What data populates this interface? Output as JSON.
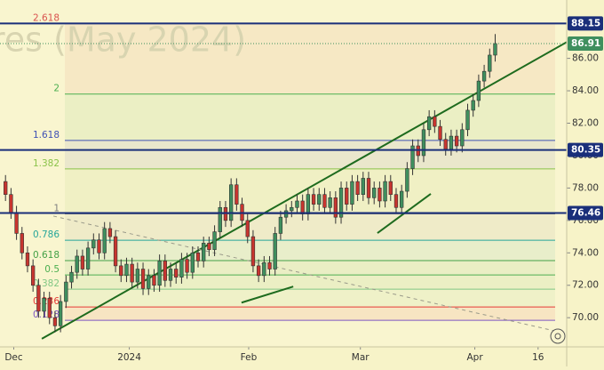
{
  "chart_data": {
    "type": "candlestick",
    "watermark": "res (May 2024)",
    "x": [
      0,
      1,
      2,
      3,
      4,
      5,
      6,
      7,
      8,
      9,
      10,
      11,
      12,
      13,
      14,
      15,
      16,
      17,
      18,
      19,
      20,
      21,
      22,
      23,
      24,
      25,
      26,
      27,
      28,
      29,
      30,
      31,
      32,
      33,
      34,
      35,
      36,
      37,
      38,
      39,
      40,
      41,
      42,
      43,
      44,
      45,
      46,
      47,
      48,
      49,
      50,
      51,
      52,
      53,
      54,
      55,
      56,
      57,
      58,
      59,
      60,
      61,
      62,
      63,
      64,
      65,
      66,
      67,
      68,
      69,
      70,
      71,
      72,
      73,
      74,
      75,
      76,
      77,
      78,
      79,
      80,
      81,
      82,
      83,
      84,
      85,
      86,
      87,
      88,
      89
    ],
    "open": [
      78.4,
      77.6,
      76.5,
      75.2,
      74.0,
      73.2,
      72.0,
      70.4,
      71.2,
      70.0,
      69.5,
      71.0,
      72.2,
      72.8,
      73.8,
      73.0,
      74.3,
      74.8,
      74.0,
      75.5,
      75.0,
      73.2,
      72.6,
      73.3,
      72.2,
      73.0,
      71.8,
      72.6,
      72.0,
      73.5,
      72.3,
      73.0,
      72.5,
      73.6,
      72.8,
      74.0,
      73.5,
      74.6,
      74.2,
      75.3,
      76.8,
      76.0,
      78.2,
      77.0,
      76.0,
      75.0,
      73.2,
      72.6,
      73.4,
      73.0,
      75.2,
      76.2,
      76.6,
      76.8,
      77.2,
      76.4,
      77.6,
      77.0,
      77.6,
      76.8,
      77.4,
      76.2,
      78.0,
      77.0,
      78.4,
      77.6,
      78.6,
      77.4,
      78.0,
      77.2,
      78.4,
      77.6,
      76.8,
      77.8,
      79.2,
      80.6,
      80.0,
      81.6,
      82.4,
      81.8,
      81.0,
      80.4,
      81.2,
      80.6,
      81.6,
      82.8,
      83.4,
      84.6,
      85.2,
      86.2
    ],
    "high": [
      78.8,
      78.0,
      76.9,
      75.6,
      74.4,
      73.6,
      72.4,
      71.6,
      71.6,
      70.4,
      71.4,
      72.6,
      73.2,
      74.2,
      74.2,
      74.7,
      75.2,
      75.2,
      75.9,
      75.9,
      75.4,
      73.6,
      73.7,
      73.7,
      73.4,
      73.4,
      73.0,
      73.0,
      73.9,
      73.9,
      73.4,
      73.4,
      74.0,
      74.0,
      74.4,
      74.4,
      75.0,
      75.0,
      75.7,
      77.2,
      77.2,
      78.6,
      78.6,
      77.4,
      76.4,
      75.4,
      73.6,
      73.8,
      73.8,
      75.6,
      76.6,
      77.0,
      77.2,
      77.6,
      77.6,
      78.0,
      78.0,
      78.0,
      78.0,
      77.8,
      77.8,
      78.4,
      78.4,
      78.8,
      78.8,
      79.0,
      79.0,
      78.4,
      78.4,
      78.8,
      78.8,
      78.0,
      78.2,
      79.6,
      81.0,
      81.0,
      82.0,
      82.8,
      82.8,
      82.2,
      81.4,
      81.6,
      81.6,
      82.0,
      83.2,
      83.8,
      85.0,
      85.6,
      86.6,
      87.5
    ],
    "low": [
      77.2,
      76.1,
      74.8,
      73.6,
      72.8,
      71.6,
      70.0,
      70.0,
      69.6,
      69.1,
      69.1,
      70.6,
      71.8,
      72.4,
      72.6,
      72.6,
      73.9,
      73.6,
      73.6,
      74.6,
      72.8,
      72.2,
      72.2,
      71.8,
      71.8,
      71.4,
      71.4,
      71.6,
      71.6,
      71.9,
      71.9,
      72.1,
      72.1,
      72.4,
      72.4,
      73.1,
      73.1,
      73.8,
      73.8,
      74.9,
      75.6,
      75.6,
      76.6,
      75.6,
      74.6,
      72.8,
      72.2,
      72.2,
      72.6,
      72.6,
      74.8,
      75.8,
      76.2,
      76.4,
      76.0,
      76.0,
      76.6,
      76.6,
      76.4,
      76.4,
      75.8,
      75.8,
      76.6,
      76.6,
      77.2,
      77.2,
      77.0,
      77.0,
      76.8,
      76.8,
      77.2,
      76.4,
      76.4,
      77.4,
      78.8,
      79.6,
      79.6,
      81.2,
      81.4,
      80.6,
      80.0,
      80.0,
      80.2,
      80.2,
      81.2,
      82.4,
      83.0,
      84.2,
      84.8,
      85.8
    ],
    "close": [
      77.6,
      76.5,
      75.2,
      74.0,
      73.2,
      72.0,
      70.4,
      71.2,
      70.0,
      69.5,
      71.0,
      72.2,
      72.8,
      73.8,
      73.0,
      74.3,
      74.8,
      74.0,
      75.5,
      75.0,
      73.2,
      72.6,
      73.3,
      72.2,
      73.0,
      71.8,
      72.6,
      72.0,
      73.5,
      72.3,
      73.0,
      72.5,
      73.6,
      72.8,
      74.0,
      73.5,
      74.6,
      74.2,
      75.3,
      76.8,
      76.0,
      78.2,
      77.0,
      76.0,
      75.0,
      73.2,
      72.6,
      73.4,
      73.0,
      75.2,
      76.2,
      76.6,
      76.8,
      77.2,
      76.4,
      77.6,
      77.0,
      77.6,
      76.8,
      77.4,
      76.2,
      78.0,
      77.0,
      78.4,
      77.6,
      78.6,
      77.4,
      78.0,
      77.2,
      78.4,
      77.6,
      76.8,
      77.8,
      79.2,
      80.6,
      80.0,
      81.6,
      82.4,
      81.8,
      81.0,
      80.4,
      81.2,
      80.6,
      81.6,
      82.8,
      83.4,
      84.6,
      85.2,
      86.2,
      86.91
    ],
    "up_color": "#3f8f5e",
    "down_color": "#c8352f",
    "xlim": [
      -1,
      102
    ],
    "xticks": [
      {
        "value": 1.5,
        "label": "Dec"
      },
      {
        "value": 22.5,
        "label": "2024"
      },
      {
        "value": 44.2,
        "label": "Feb"
      },
      {
        "value": 64.5,
        "label": "Mar"
      },
      {
        "value": 85.3,
        "label": "Apr"
      },
      {
        "value": 96.8,
        "label": "16"
      }
    ],
    "ylim": [
      68.2,
      89.6
    ],
    "yticks": [
      {
        "value": 70,
        "label": "70.00"
      },
      {
        "value": 72,
        "label": "72.00"
      },
      {
        "value": 74,
        "label": "74.00"
      },
      {
        "value": 76,
        "label": "76.00"
      },
      {
        "value": 78,
        "label": "78.00"
      },
      {
        "value": 80,
        "label": "80.00"
      },
      {
        "value": 82,
        "label": "82.00"
      },
      {
        "value": 84,
        "label": "84.00"
      },
      {
        "value": 86,
        "label": "86.00"
      }
    ],
    "fib_levels": [
      {
        "label": "2.618",
        "value": 88.15,
        "color": "#d9534f"
      },
      {
        "label": "2",
        "value": 83.8,
        "color": "#4caf50"
      },
      {
        "label": "1.618",
        "value": 80.94,
        "color": "#3f51b5"
      },
      {
        "label": "1.382",
        "value": 79.18,
        "color": "#8bc34a"
      },
      {
        "label": "1",
        "value": 76.4,
        "color": "#808080"
      },
      {
        "label": "0.786",
        "value": 74.78,
        "color": "#26a69a"
      },
      {
        "label": "0.618",
        "value": 73.52,
        "color": "#43a047"
      },
      {
        "label": "0.5",
        "value": 72.64,
        "color": "#4caf50"
      },
      {
        "label": "0.382",
        "value": 71.76,
        "color": "#81c784"
      },
      {
        "label": "0.236",
        "value": 70.66,
        "color": "#e53935"
      },
      {
        "label": "0.128",
        "value": 69.84,
        "color": "#7e57c2"
      }
    ],
    "price_lines": [
      {
        "value": 88.15,
        "label": "88.15",
        "color": "#1a2f7a"
      },
      {
        "value": 80.35,
        "label": "80.35",
        "color": "#1a2f7a"
      },
      {
        "value": 76.46,
        "label": "76.46",
        "color": "#1a2f7a"
      }
    ],
    "last_price": {
      "value": 86.91,
      "label": "86.91",
      "color": "#3f8f5e"
    },
    "trend_lines": [
      {
        "x": [
          6.6,
          102
        ],
        "y": [
          68.7,
          87.0
        ],
        "color": "#1e6b1e"
      },
      {
        "x": [
          42.9,
          52.3
        ],
        "y": [
          70.93,
          71.92
        ],
        "color": "#1e6b1e"
      },
      {
        "x": [
          67.6,
          77.3
        ],
        "y": [
          75.22,
          77.64
        ],
        "color": "#1e6b1e"
      },
      {
        "x": [
          8.7,
          99.9
        ],
        "y": [
          76.27,
          69.18
        ],
        "color": "#9a9a8a",
        "dashed": true
      }
    ]
  }
}
